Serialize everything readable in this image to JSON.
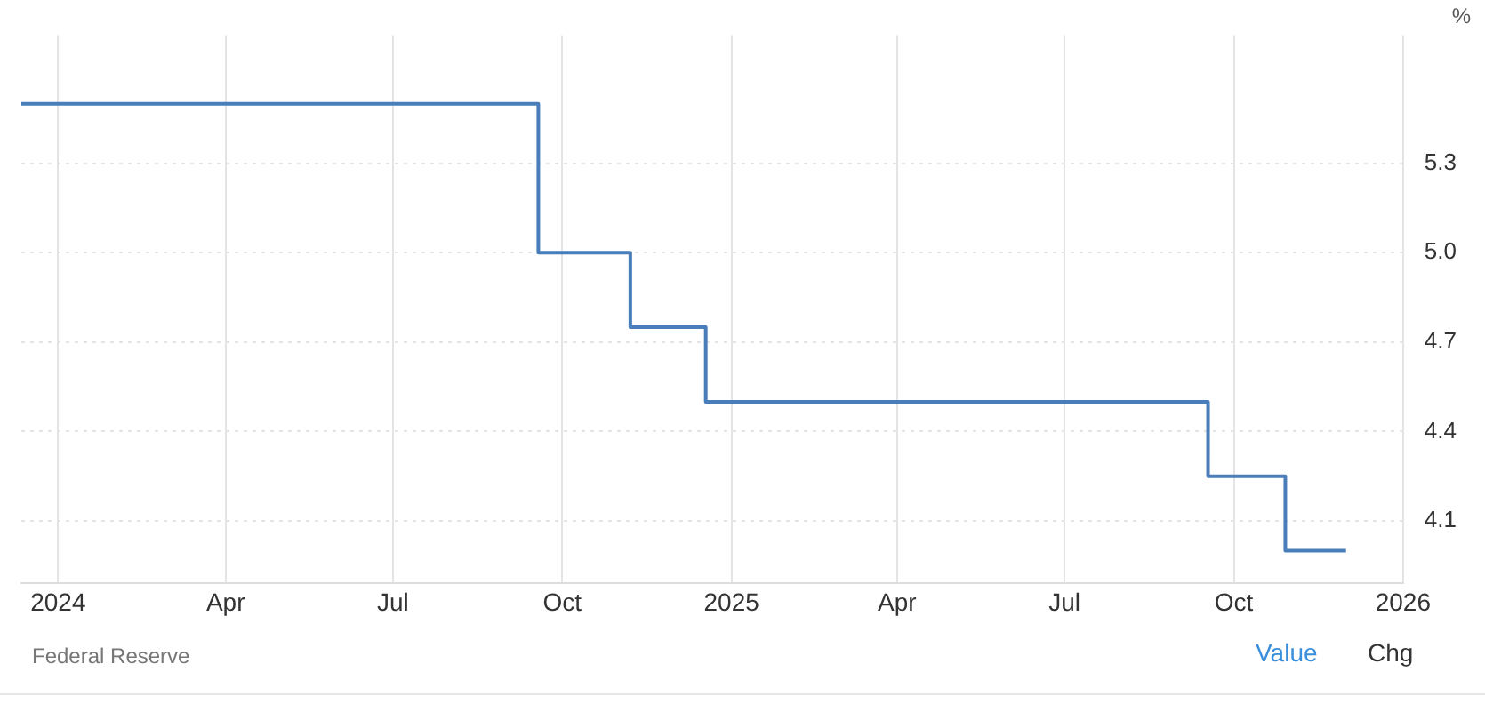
{
  "chart_data": {
    "type": "step",
    "ylabel": "%",
    "x": [
      "2023-12-12",
      "2024-09-18",
      "2024-11-07",
      "2024-12-18",
      "2025-09-17",
      "2025-10-29",
      "2025-12-01"
    ],
    "series": [
      {
        "color": "#4a7ebb",
        "values": [
          5.5,
          5.0,
          4.75,
          4.5,
          4.25,
          4.0,
          4.0
        ]
      }
    ],
    "xlim": [
      "2023-12-12",
      "2026-01-01"
    ],
    "xticks": [
      {
        "value": "2024-01-01",
        "label": "2024"
      },
      {
        "value": "2024-04-01",
        "label": "Apr"
      },
      {
        "value": "2024-07-01",
        "label": "Jul"
      },
      {
        "value": "2024-10-01",
        "label": "Oct"
      },
      {
        "value": "2025-01-01",
        "label": "2025"
      },
      {
        "value": "2025-04-01",
        "label": "Apr"
      },
      {
        "value": "2025-07-01",
        "label": "Jul"
      },
      {
        "value": "2025-10-01",
        "label": "Oct"
      },
      {
        "value": "2026-01-01",
        "label": "2026"
      }
    ],
    "ylim": [
      3.89,
      5.73
    ],
    "yticks": [
      4.1,
      4.4,
      4.7,
      {
        "value": 5.0,
        "label": "5.0"
      },
      5.3
    ],
    "grid": true,
    "legend": false,
    "marker": "none",
    "line_style": "solid",
    "annotations": [
      "Federal Reserve",
      "Value",
      "Chg"
    ]
  }
}
